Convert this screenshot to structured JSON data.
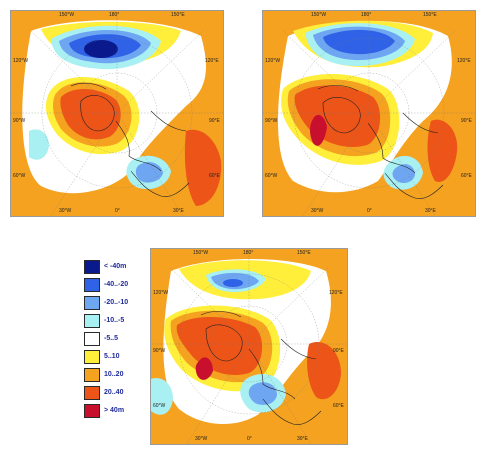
{
  "maps": [
    {
      "id": "top-left",
      "labels": {
        "top_left": "150°W",
        "top_center": "180°",
        "top_right": "150°E",
        "left_upper": "120°W",
        "left_mid": "90°W",
        "left_lower": "60°W",
        "right_upper": "120°E",
        "right_mid": "90°E",
        "right_lower": "60°E",
        "bottom_left": "30°W",
        "bottom_center": "0°",
        "bottom_right": "30°E"
      }
    },
    {
      "id": "top-right",
      "labels": {
        "top_left": "150°W",
        "top_center": "180°",
        "top_right": "150°E",
        "left_upper": "120°W",
        "left_mid": "90°W",
        "left_lower": "60°W",
        "right_upper": "120°E",
        "right_mid": "90°E",
        "right_lower": "60°E",
        "bottom_left": "30°W",
        "bottom_center": "0°",
        "bottom_right": "30°E"
      }
    },
    {
      "id": "bottom-center",
      "labels": {
        "top_left": "150°W",
        "top_center": "180°",
        "top_right": "150°E",
        "left_upper": "120°W",
        "left_mid": "90°W",
        "left_lower": "60°W",
        "right_upper": "120°E",
        "right_mid": "90°E",
        "right_lower": "60°E",
        "bottom_left": "30°W",
        "bottom_center": "0°",
        "bottom_right": "30°E"
      }
    }
  ],
  "legend": {
    "items": [
      {
        "label": "< -40m",
        "color": "#0a1a8c"
      },
      {
        "label": "-40..-20",
        "color": "#2f62e6"
      },
      {
        "label": "-20..-10",
        "color": "#6ea6f2"
      },
      {
        "label": "-10..-5",
        "color": "#a9f0f2"
      },
      {
        "label": "-5..5",
        "color": "#ffffff"
      },
      {
        "label": "5..10",
        "color": "#ffee3a"
      },
      {
        "label": "10..20",
        "color": "#f4a21f"
      },
      {
        "label": "20..40",
        "color": "#ec5418"
      },
      {
        "label": "> 40m",
        "color": "#c8102e"
      }
    ]
  }
}
